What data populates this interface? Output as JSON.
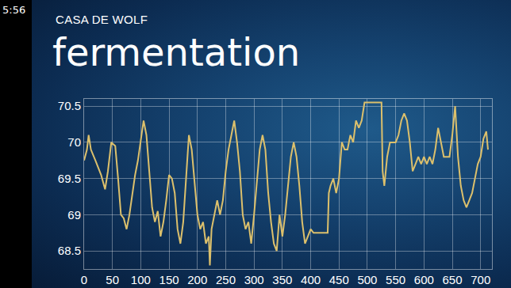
{
  "chart_data": {
    "type": "line",
    "title": "fermentation",
    "subtitle": "CASA DE WOLF",
    "annotations": [
      "5:56"
    ],
    "x": [
      0,
      5,
      8,
      12,
      20,
      30,
      37,
      42,
      48,
      55,
      60,
      65,
      70,
      75,
      80,
      85,
      90,
      95,
      100,
      105,
      110,
      115,
      120,
      125,
      130,
      135,
      140,
      145,
      150,
      155,
      160,
      165,
      170,
      175,
      180,
      185,
      190,
      195,
      200,
      205,
      210,
      215,
      220,
      222,
      225,
      230,
      235,
      240,
      245,
      250,
      255,
      260,
      265,
      270,
      275,
      280,
      285,
      290,
      295,
      300,
      305,
      310,
      315,
      320,
      325,
      330,
      335,
      340,
      345,
      350,
      355,
      360,
      365,
      370,
      375,
      380,
      385,
      390,
      395,
      400,
      405,
      410,
      420,
      430,
      432,
      435,
      440,
      445,
      450,
      455,
      460,
      465,
      470,
      475,
      480,
      485,
      490,
      495,
      500,
      510,
      520,
      525,
      527,
      530,
      535,
      540,
      545,
      550,
      555,
      560,
      565,
      570,
      575,
      580,
      585,
      590,
      595,
      600,
      605,
      610,
      615,
      620,
      625,
      630,
      635,
      640,
      645,
      650,
      655,
      660,
      665,
      670,
      675,
      680,
      685,
      690,
      695,
      700,
      705,
      710,
      713
    ],
    "values": [
      69.75,
      69.9,
      70.1,
      69.9,
      69.75,
      69.55,
      69.35,
      69.6,
      70.0,
      69.95,
      69.5,
      69.0,
      68.95,
      68.8,
      69.0,
      69.3,
      69.55,
      69.75,
      70.0,
      70.3,
      70.1,
      69.6,
      69.1,
      68.9,
      69.05,
      68.7,
      68.9,
      69.2,
      69.55,
      69.5,
      69.3,
      68.8,
      68.6,
      68.9,
      69.5,
      70.1,
      69.9,
      69.4,
      69.0,
      68.8,
      68.9,
      68.6,
      68.7,
      68.3,
      68.8,
      69.0,
      69.2,
      69.0,
      69.2,
      69.6,
      69.9,
      70.1,
      70.3,
      70.0,
      69.6,
      69.0,
      68.8,
      68.9,
      68.6,
      69.0,
      69.5,
      69.9,
      70.1,
      69.9,
      69.3,
      68.9,
      68.6,
      68.5,
      69.0,
      68.7,
      69.0,
      69.4,
      69.8,
      70.0,
      69.8,
      69.4,
      68.9,
      68.6,
      68.7,
      68.8,
      68.75,
      68.75,
      68.75,
      68.75,
      69.3,
      69.4,
      69.5,
      69.3,
      69.5,
      70.0,
      69.9,
      69.9,
      70.1,
      70.0,
      70.3,
      70.2,
      70.3,
      70.55,
      70.55,
      70.55,
      70.55,
      70.55,
      69.6,
      69.4,
      69.8,
      70.0,
      70.0,
      70.0,
      70.1,
      70.3,
      70.4,
      70.3,
      70.0,
      69.6,
      69.7,
      69.8,
      69.7,
      69.8,
      69.7,
      69.8,
      69.7,
      69.9,
      70.2,
      70.0,
      69.8,
      69.8,
      69.8,
      70.1,
      70.5,
      69.8,
      69.4,
      69.2,
      69.1,
      69.2,
      69.3,
      69.5,
      69.7,
      69.8,
      70.05,
      70.15,
      69.9
    ],
    "color": "#dcc06c",
    "xlim": [
      0,
      720
    ],
    "ylim": [
      68.25,
      70.6
    ],
    "xticks": [
      0,
      50,
      100,
      150,
      200,
      250,
      300,
      350,
      400,
      450,
      500,
      550,
      600,
      650,
      700
    ],
    "yticks": [
      68.5,
      69,
      69.5,
      70,
      70.5
    ],
    "grid": true
  }
}
